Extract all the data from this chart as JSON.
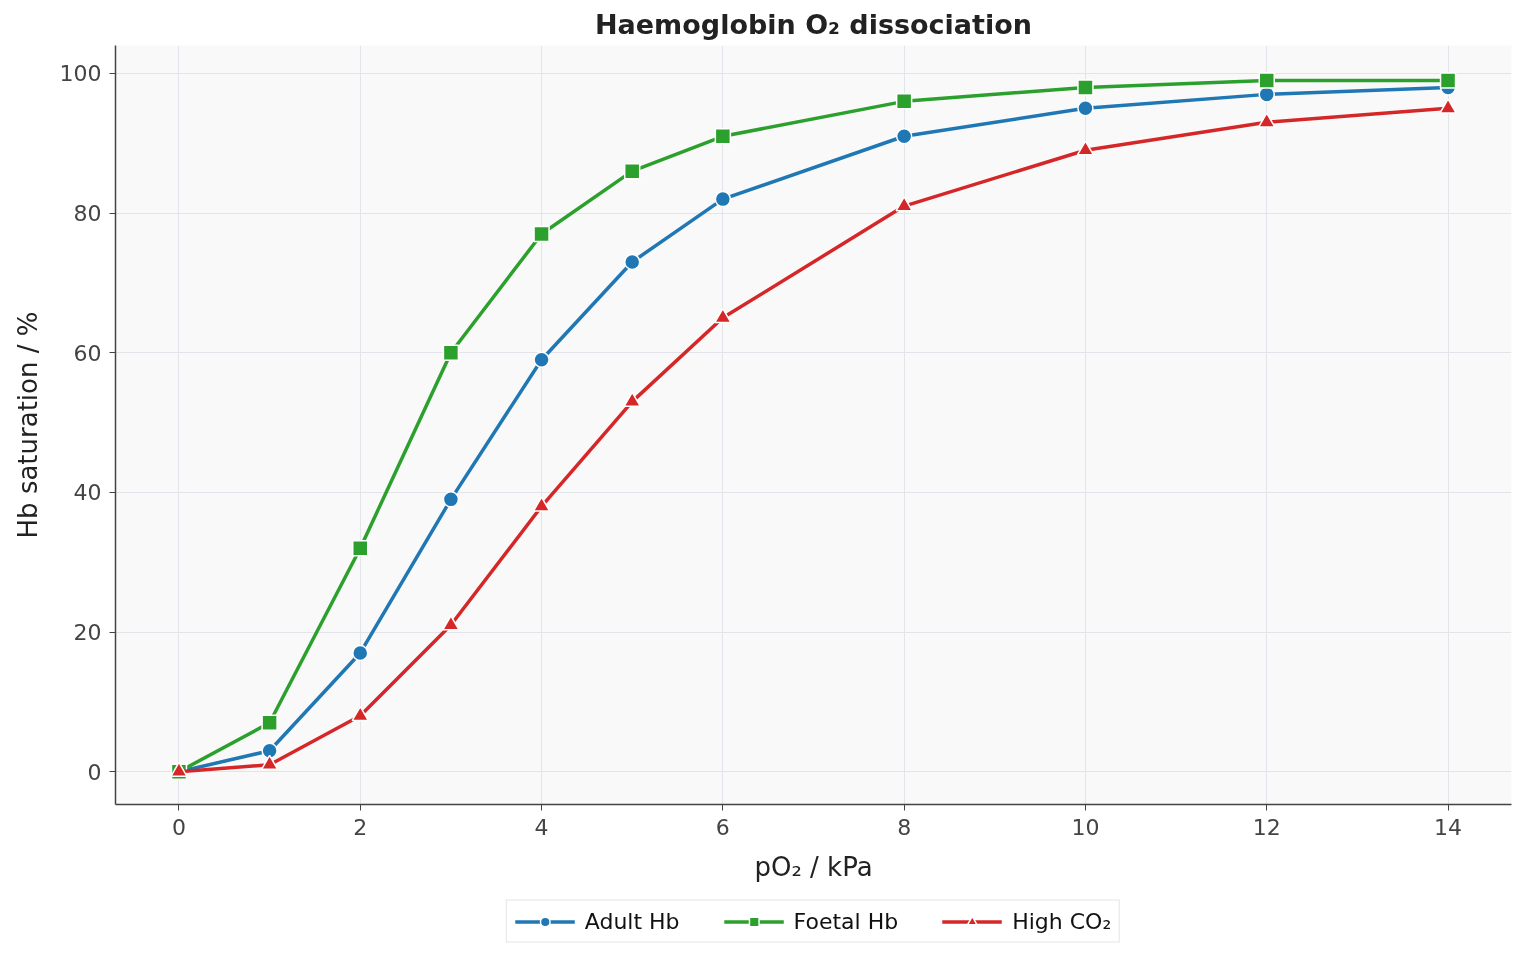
{
  "chart_data": {
    "type": "line",
    "title": "Haemoglobin O₂ dissociation",
    "xlabel": "pO₂ / kPa",
    "ylabel": "Hb saturation / %",
    "x": [
      0,
      1,
      2,
      3,
      4,
      5,
      6,
      8,
      10,
      12,
      14
    ],
    "series": [
      {
        "name": "Adult Hb",
        "color": "#1f77b4",
        "marker": "circle",
        "values": [
          0,
          3,
          17,
          39,
          59,
          73,
          82,
          91,
          95,
          97,
          98
        ]
      },
      {
        "name": "Foetal Hb",
        "color": "#2ca02c",
        "marker": "square",
        "values": [
          0,
          7,
          32,
          60,
          77,
          86,
          91,
          96,
          98,
          99,
          99
        ]
      },
      {
        "name": "High CO₂",
        "color": "#d62728",
        "marker": "triangle",
        "values": [
          0,
          1,
          8,
          21,
          38,
          53,
          65,
          81,
          89,
          93,
          95
        ]
      }
    ],
    "xlim": [
      -0.7,
      14.7
    ],
    "ylim": [
      -4.7,
      104
    ],
    "xticks": [
      0,
      2,
      4,
      6,
      8,
      10,
      12,
      14
    ],
    "yticks": [
      0,
      20,
      40,
      60,
      80,
      100
    ],
    "grid": true,
    "legend": "bottom"
  }
}
